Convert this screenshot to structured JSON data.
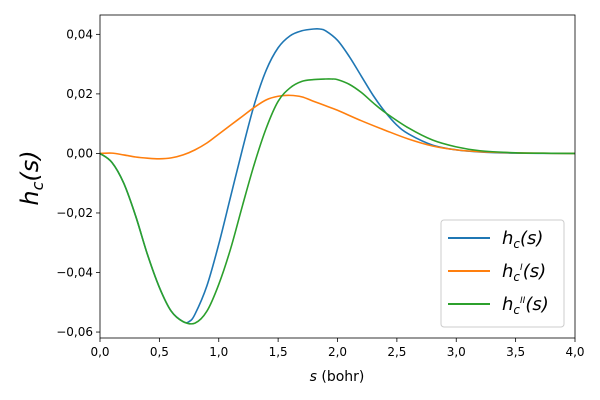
{
  "chart_data": {
    "type": "line",
    "title": "",
    "xlabel_italic": "s",
    "xlabel_unit": " (bohr)",
    "ylabel_main": "h",
    "ylabel_sub": "c",
    "ylabel_arg": "(s)",
    "xlim": [
      0,
      4
    ],
    "ylim": [
      -0.062,
      0.0465
    ],
    "xticks": [
      0,
      0.5,
      1,
      1.5,
      2,
      2.5,
      3,
      3.5,
      4
    ],
    "xtick_labels": [
      "0,0",
      "0,5",
      "1,0",
      "1,5",
      "2,0",
      "2,5",
      "3,0",
      "3,5",
      "4,0"
    ],
    "yticks": [
      -0.06,
      -0.04,
      -0.02,
      0,
      0.02,
      0.04
    ],
    "ytick_labels": [
      "−0,06",
      "−0,04",
      "−0,02",
      "0,00",
      "0,02",
      "0,04"
    ],
    "grid": false,
    "legend_position": "lower-right",
    "series": [
      {
        "name_main": "h",
        "name_sub": "c",
        "name_sup": "",
        "name_arg": "(s)",
        "color": "#1f77b4",
        "x": [
          0,
          0.1,
          0.2,
          0.3,
          0.4,
          0.5,
          0.6,
          0.7,
          0.75,
          0.8,
          0.9,
          1.0,
          1.1,
          1.2,
          1.3,
          1.4,
          1.5,
          1.6,
          1.7,
          1.8,
          1.85,
          1.9,
          2.0,
          2.1,
          2.2,
          2.3,
          2.4,
          2.5,
          2.6,
          2.8,
          3.0,
          3.2,
          3.5,
          3.8,
          4.0
        ],
        "y": [
          0,
          -0.003,
          -0.01,
          -0.021,
          -0.034,
          -0.045,
          -0.053,
          -0.0565,
          -0.0565,
          -0.054,
          -0.0445,
          -0.0305,
          -0.0145,
          0.0015,
          0.0165,
          0.028,
          0.0355,
          0.0395,
          0.0412,
          0.0418,
          0.0418,
          0.0412,
          0.038,
          0.0325,
          0.026,
          0.0195,
          0.014,
          0.0095,
          0.0065,
          0.0028,
          0.0012,
          0.0005,
          0.0001,
          5e-05,
          0
        ]
      },
      {
        "name_main": "h",
        "name_sub": "c",
        "name_sup": "I",
        "name_arg": "(s)",
        "color": "#ff7f0e",
        "x": [
          0,
          0.1,
          0.2,
          0.3,
          0.4,
          0.5,
          0.6,
          0.7,
          0.8,
          0.9,
          1.0,
          1.1,
          1.2,
          1.3,
          1.4,
          1.5,
          1.6,
          1.7,
          1.8,
          1.9,
          2.0,
          2.2,
          2.4,
          2.6,
          2.8,
          3.0,
          3.2,
          3.5,
          3.8,
          4.0
        ],
        "y": [
          0,
          0.0001,
          -0.0005,
          -0.0012,
          -0.0016,
          -0.0018,
          -0.0015,
          -0.0005,
          0.0012,
          0.0035,
          0.0065,
          0.0095,
          0.0125,
          0.0155,
          0.018,
          0.0192,
          0.0195,
          0.019,
          0.0175,
          0.016,
          0.0145,
          0.011,
          0.0078,
          0.0048,
          0.0025,
          0.0012,
          0.0006,
          0.0002,
          5e-05,
          0
        ]
      },
      {
        "name_main": "h",
        "name_sub": "c",
        "name_sup": "II",
        "name_arg": "(s)",
        "color": "#2ca02c",
        "x": [
          0,
          0.1,
          0.2,
          0.3,
          0.4,
          0.5,
          0.6,
          0.7,
          0.8,
          0.9,
          1.0,
          1.1,
          1.2,
          1.3,
          1.4,
          1.5,
          1.6,
          1.7,
          1.8,
          1.9,
          1.95,
          2.0,
          2.1,
          2.2,
          2.3,
          2.4,
          2.6,
          2.8,
          3.0,
          3.2,
          3.5,
          3.8,
          4.0
        ],
        "y": [
          0,
          -0.003,
          -0.01,
          -0.021,
          -0.034,
          -0.045,
          -0.053,
          -0.0565,
          -0.057,
          -0.053,
          -0.044,
          -0.032,
          -0.0175,
          -0.0035,
          0.0085,
          0.0175,
          0.022,
          0.0242,
          0.0248,
          0.025,
          0.025,
          0.0248,
          0.0232,
          0.0205,
          0.017,
          0.0138,
          0.0085,
          0.0045,
          0.0022,
          0.0009,
          0.0002,
          5e-05,
          0
        ]
      }
    ]
  }
}
